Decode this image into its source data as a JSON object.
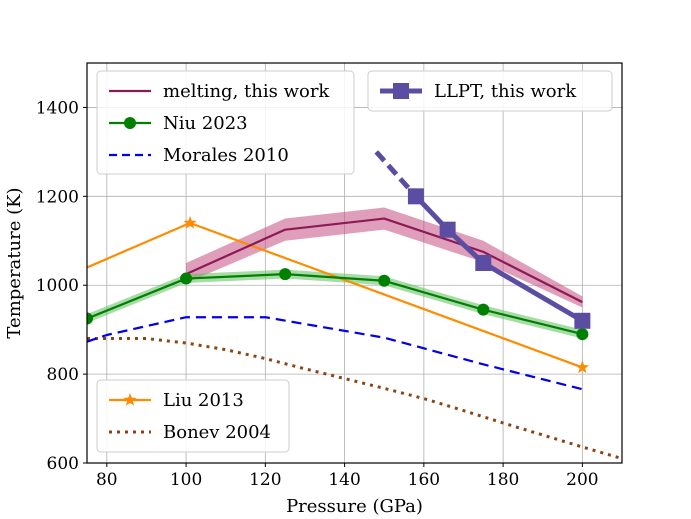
{
  "chart_data": {
    "type": "line",
    "title": "",
    "xlabel": "Pressure (GPa)",
    "ylabel": "Temperature (K)",
    "xlim": [
      75,
      210
    ],
    "ylim": [
      600,
      1500
    ],
    "xticks": [
      80,
      100,
      120,
      140,
      160,
      180,
      200
    ],
    "yticks": [
      600,
      800,
      1000,
      1200,
      1400
    ],
    "grid": true,
    "series": [
      {
        "name": "melting, this work",
        "color": "#8b1a56",
        "style": "solid",
        "x": [
          100,
          125,
          150,
          175,
          200
        ],
        "y": [
          1025,
          1125,
          1150,
          1075,
          962
        ],
        "band_lower": [
          1005,
          1100,
          1125,
          1052,
          950
        ],
        "band_upper": [
          1050,
          1150,
          1175,
          1100,
          975
        ],
        "band_color": "#c44e7f"
      },
      {
        "name": "Niu 2023",
        "color": "#008000",
        "style": "solid",
        "marker": "circle",
        "x": [
          75,
          100,
          125,
          150,
          175,
          200
        ],
        "y": [
          925,
          1015,
          1025,
          1010,
          945,
          890
        ],
        "band_lower": [
          915,
          1005,
          1015,
          1000,
          935,
          880
        ],
        "band_upper": [
          935,
          1025,
          1035,
          1020,
          955,
          900
        ],
        "band_color": "#5fbf5f"
      },
      {
        "name": "Morales 2010",
        "color": "#0000ee",
        "style": "dashed",
        "x": [
          75,
          80,
          100,
          120,
          150,
          175,
          200
        ],
        "y": [
          873,
          888,
          928,
          928,
          882,
          822,
          766
        ]
      },
      {
        "name": "LLPT, this work",
        "color": "#5b4ea2",
        "style": "dashed-solid",
        "marker": "square",
        "x_dashed": [
          148,
          158
        ],
        "y_dashed": [
          1300,
          1200
        ],
        "x": [
          158,
          166,
          175,
          200
        ],
        "y": [
          1200,
          1125,
          1050,
          920
        ]
      },
      {
        "name": "Liu 2013",
        "color": "#ff8c00",
        "style": "solid",
        "marker": "star",
        "x": [
          75,
          101,
          200
        ],
        "y": [
          1040,
          1140,
          815
        ],
        "marker_x": [
          101,
          200
        ],
        "marker_y": [
          1140,
          815
        ]
      },
      {
        "name": "Bonev 2004",
        "color": "#8b4513",
        "style": "dotted",
        "x": [
          75,
          90,
          100,
          110,
          120,
          130,
          140,
          150,
          160,
          170,
          180,
          190,
          200,
          210
        ],
        "y": [
          880,
          880,
          870,
          855,
          835,
          812,
          790,
          768,
          745,
          718,
          690,
          663,
          636,
          610
        ]
      }
    ],
    "legends": [
      {
        "position": "upper-left",
        "entries": [
          "melting, this work",
          "Niu 2023",
          "Morales 2010"
        ]
      },
      {
        "position": "upper-right",
        "entries": [
          "LLPT, this work"
        ]
      },
      {
        "position": "lower-left",
        "entries": [
          "Liu 2013",
          "Bonev 2004"
        ]
      }
    ]
  }
}
